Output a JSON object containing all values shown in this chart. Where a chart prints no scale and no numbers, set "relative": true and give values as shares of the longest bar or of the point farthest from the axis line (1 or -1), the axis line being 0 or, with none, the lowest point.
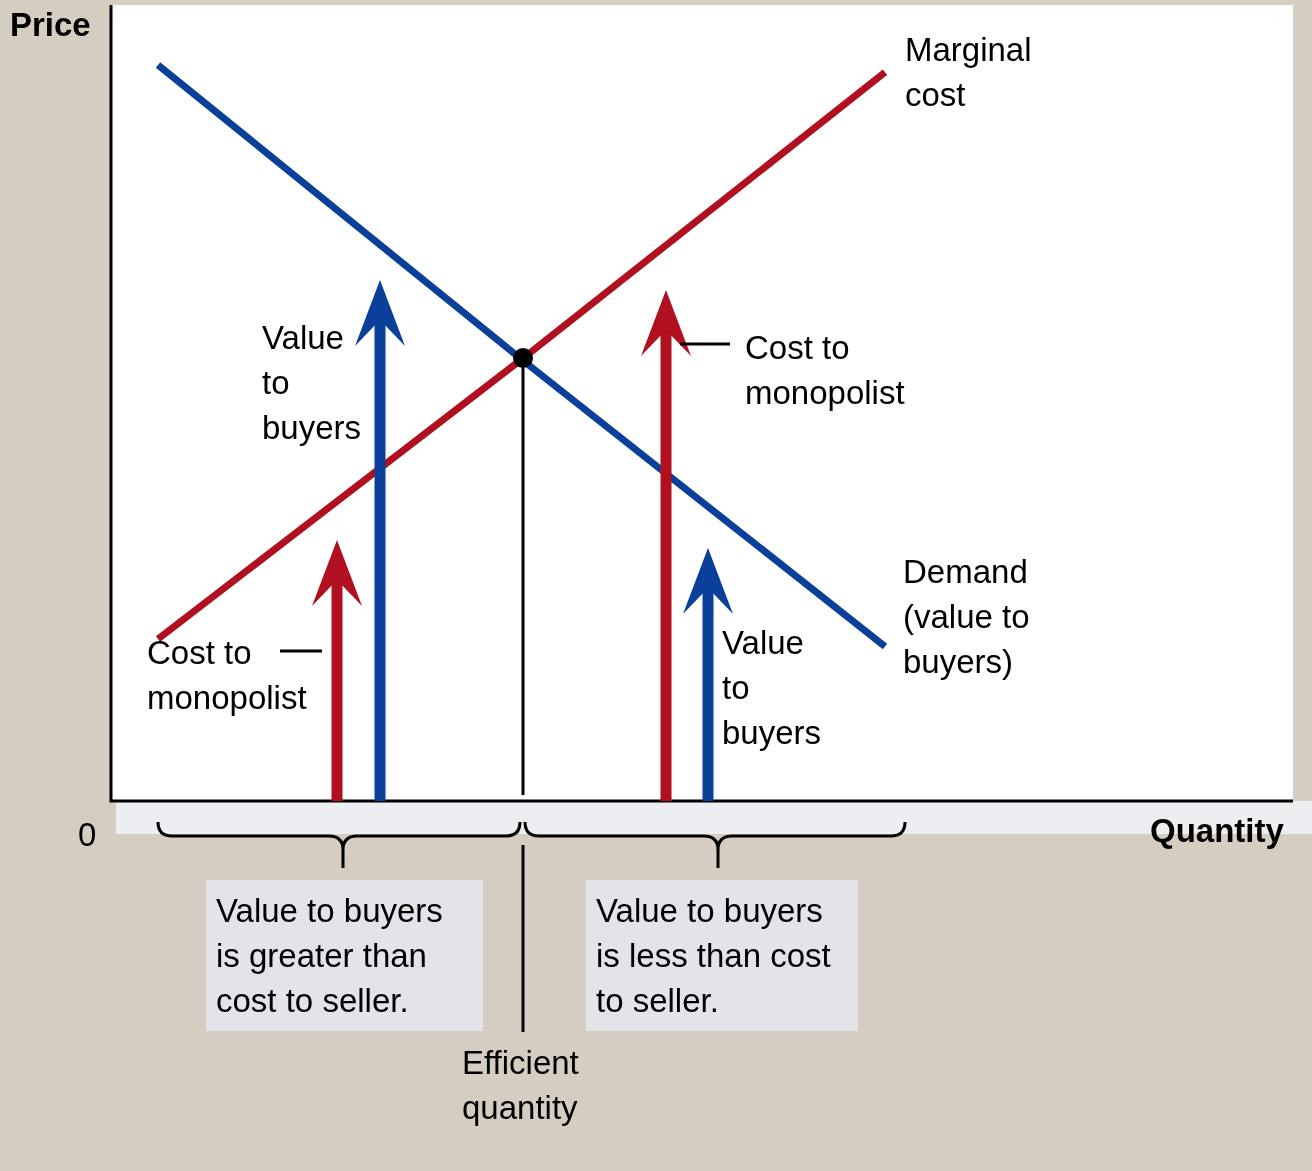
{
  "chart_data": {
    "type": "line",
    "relative": true,
    "ylabel": "Price",
    "xlabel": "Quantity",
    "categories": [
      null,
      null,
      null
    ],
    "marker": "none",
    "line_style": "solid",
    "series": [
      {
        "name": "Demand (value to buyers)",
        "color": "#0a3f9a",
        "values": [
          1,
          0.6,
          0.21
        ]
      },
      {
        "name": "Marginal cost",
        "color": "#b0101f",
        "values": [
          0.22,
          0.6,
          0.99
        ]
      }
    ],
    "annotations": [
      "Value to buyers",
      "Cost to monopolist",
      "Cost to monopolist",
      "Value to buyers",
      "0",
      "Value to buyers is greater than cost to seller.",
      "Value to buyers is less than cost to seller.",
      "Efficient quantity"
    ]
  }
}
